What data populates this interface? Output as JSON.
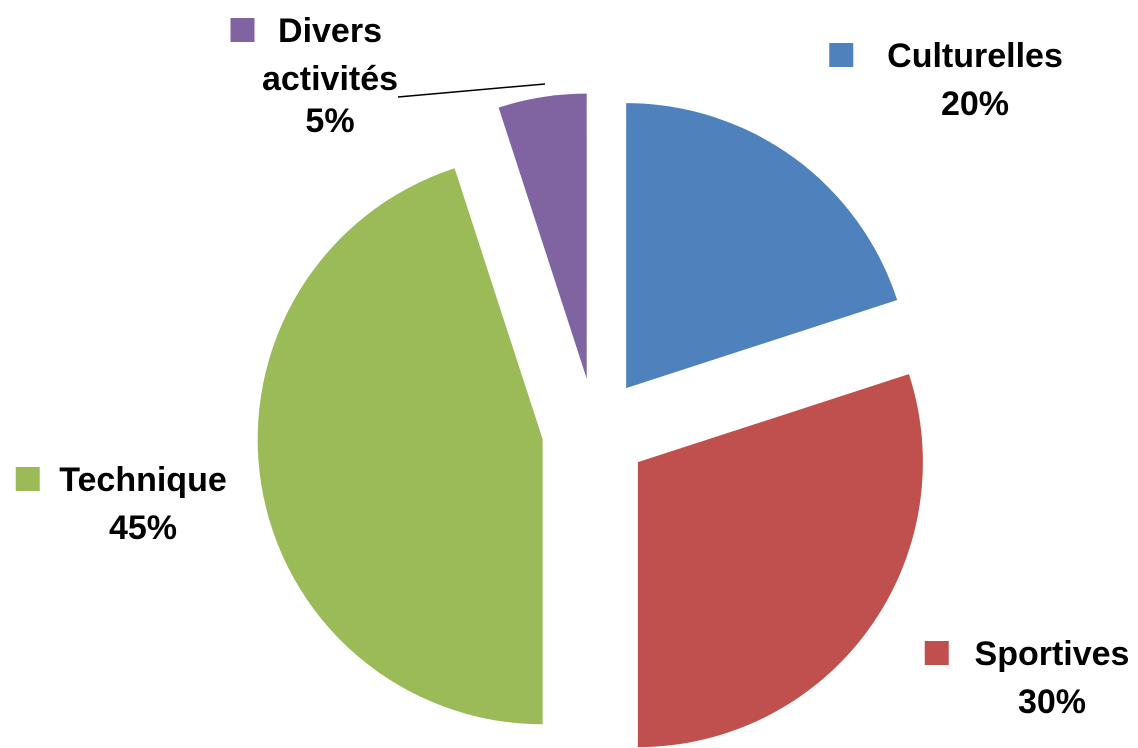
{
  "chart_data": {
    "type": "pie",
    "exploded": true,
    "title": "",
    "slices": [
      {
        "name": "Culturelles",
        "label_lines": [
          "Culturelles"
        ],
        "value": 20,
        "value_label": "20%",
        "color": "#4F81BD"
      },
      {
        "name": "Sportives",
        "label_lines": [
          "Sportives"
        ],
        "value": 30,
        "value_label": "30%",
        "color": "#C0504D"
      },
      {
        "name": "Technique",
        "label_lines": [
          "Technique"
        ],
        "value": 45,
        "value_label": "45%",
        "color": "#9BBB59"
      },
      {
        "name": "Divers activités",
        "label_lines": [
          "Divers",
          "activités"
        ],
        "value": 5,
        "value_label": "5%",
        "color": "#8064A2"
      }
    ],
    "legend": "labels-with-markers-beside-slices"
  }
}
